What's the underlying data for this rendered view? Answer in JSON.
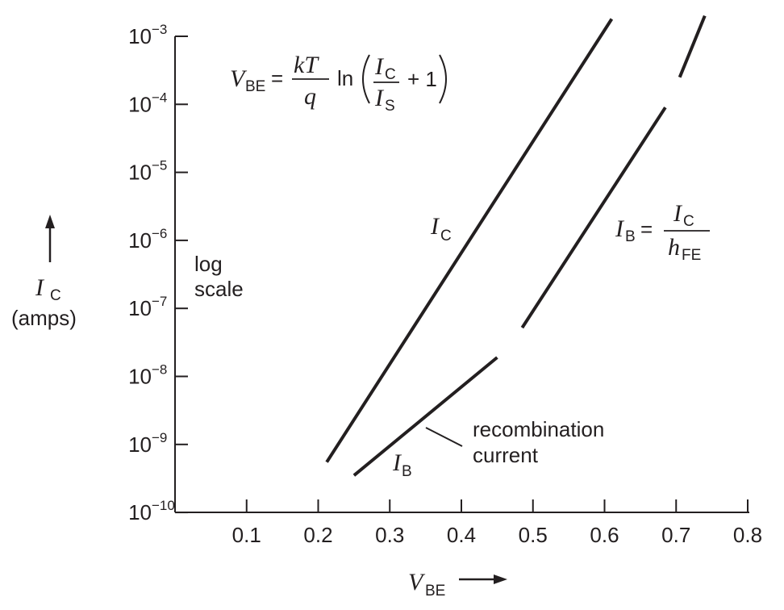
{
  "chart_data": {
    "type": "line",
    "x_axis": {
      "label": "V",
      "label_sub": "BE",
      "range": [
        0,
        0.8
      ],
      "ticks": [
        0.1,
        0.2,
        0.3,
        0.4,
        0.5,
        0.6,
        0.7,
        0.8
      ],
      "tick_labels": [
        "0.1",
        "0.2",
        "0.3",
        "0.4",
        "0.5",
        "0.6",
        "0.7",
        "0.8"
      ]
    },
    "y_axis": {
      "label": "I",
      "label_sub": "C",
      "label_units": "(amps)",
      "scale": "log",
      "scale_note_line1": "log",
      "scale_note_line2": "scale",
      "range": [
        1e-10,
        0.001
      ],
      "ticks": [
        0.001,
        0.0001,
        1e-05,
        1e-06,
        1e-07,
        1e-08,
        1e-09,
        1e-10
      ],
      "tick_bases": [
        "10",
        "10",
        "10",
        "10",
        "10",
        "10",
        "10",
        "10"
      ],
      "tick_exponents": [
        "−3",
        "−4",
        "−5",
        "−6",
        "−7",
        "−8",
        "−9",
        "−10"
      ]
    },
    "series": [
      {
        "name": "IC",
        "label_main": "I",
        "label_sub": "C",
        "segments": [
          [
            [
              0.212,
              5.5e-10
            ],
            [
              0.61,
              0.0018
            ]
          ]
        ]
      },
      {
        "name": "IB",
        "label_main": "I",
        "label_sub": "B",
        "segments": [
          [
            [
              0.25,
              3.5e-10
            ],
            [
              0.45,
              1.9e-08
            ]
          ],
          [
            [
              0.485,
              5.2e-08
            ],
            [
              0.685,
              9e-05
            ]
          ],
          [
            [
              0.705,
              0.00025
            ],
            [
              0.74,
              0.002
            ]
          ]
        ]
      }
    ],
    "annotations": {
      "formula": {
        "lhs_main": "V",
        "lhs_sub": "BE",
        "equals": "=",
        "num": "kT",
        "den": "q",
        "ln": "ln",
        "frac_num_main": "I",
        "frac_num_sub": "C",
        "frac_den_main": "I",
        "frac_den_sub": "S",
        "plus_one": "+ 1"
      },
      "ib_formula": {
        "lhs_main": "I",
        "lhs_sub": "B",
        "equals": "=",
        "num_main": "I",
        "num_sub": "C",
        "den_main": "h",
        "den_sub": "FE"
      },
      "recombination_line1": "recombination",
      "recombination_line2": "current"
    },
    "grid": false,
    "legend": "none"
  }
}
